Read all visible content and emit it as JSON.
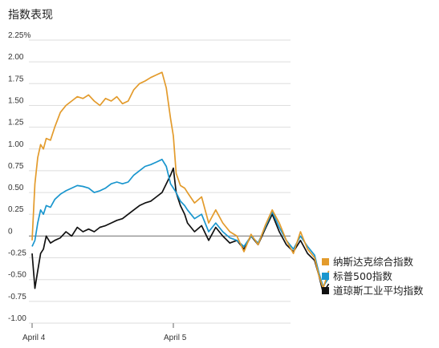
{
  "chart_data": {
    "type": "line",
    "title": "指数表现",
    "xlabel": "",
    "ylabel": "",
    "ylim": [
      -1.0,
      2.25
    ],
    "y_ticks": [
      {
        "value": 2.25,
        "label": "2.25%"
      },
      {
        "value": 2.0,
        "label": "2.00"
      },
      {
        "value": 1.75,
        "label": "1.75"
      },
      {
        "value": 1.5,
        "label": "1.50"
      },
      {
        "value": 1.25,
        "label": "1.25"
      },
      {
        "value": 1.0,
        "label": "1.00"
      },
      {
        "value": 0.75,
        "label": "0.75"
      },
      {
        "value": 0.5,
        "label": "0.50"
      },
      {
        "value": 0.25,
        "label": "0.25"
      },
      {
        "value": 0.0,
        "label": "0"
      },
      {
        "value": -0.25,
        "label": "-0.25"
      },
      {
        "value": -0.5,
        "label": "-0.50"
      },
      {
        "value": -0.75,
        "label": "-0.75"
      },
      {
        "value": -1.0,
        "label": "-1.00"
      }
    ],
    "x_ticks": [
      {
        "value": 0,
        "label": "April 4"
      },
      {
        "value": 1,
        "label": "April 5"
      }
    ],
    "xlim": [
      0,
      2.1
    ],
    "grid": "horizontal",
    "legend_position": "bottom-right",
    "series": [
      {
        "name": "纳斯达克综合指数",
        "color": "#E39B2C",
        "x": [
          0,
          0.02,
          0.04,
          0.06,
          0.08,
          0.1,
          0.13,
          0.16,
          0.2,
          0.24,
          0.28,
          0.32,
          0.36,
          0.4,
          0.44,
          0.48,
          0.52,
          0.56,
          0.6,
          0.64,
          0.68,
          0.72,
          0.76,
          0.8,
          0.84,
          0.88,
          0.92,
          0.95,
          0.98,
          1.0,
          1.02,
          1.05,
          1.08,
          1.1,
          1.15,
          1.2,
          1.25,
          1.3,
          1.35,
          1.4,
          1.45,
          1.5,
          1.55,
          1.6,
          1.65,
          1.7,
          1.75,
          1.8,
          1.85,
          1.9,
          1.95,
          2.0,
          2.03,
          2.06,
          2.1
        ],
        "y": [
          -0.05,
          0.6,
          0.9,
          1.05,
          1.0,
          1.12,
          1.1,
          1.25,
          1.42,
          1.5,
          1.55,
          1.6,
          1.58,
          1.62,
          1.55,
          1.5,
          1.58,
          1.55,
          1.6,
          1.52,
          1.55,
          1.68,
          1.75,
          1.78,
          1.82,
          1.85,
          1.88,
          1.7,
          1.35,
          1.15,
          0.72,
          0.58,
          0.55,
          0.5,
          0.38,
          0.45,
          0.15,
          0.3,
          0.15,
          0.05,
          0.0,
          -0.18,
          0.02,
          -0.1,
          0.12,
          0.3,
          0.15,
          -0.05,
          -0.2,
          0.05,
          -0.15,
          -0.25,
          -0.45,
          -0.6,
          -0.4
        ]
      },
      {
        "name": "标普500指数",
        "color": "#1A96CE",
        "x": [
          0,
          0.02,
          0.04,
          0.06,
          0.08,
          0.1,
          0.13,
          0.16,
          0.2,
          0.24,
          0.28,
          0.32,
          0.36,
          0.4,
          0.44,
          0.48,
          0.52,
          0.56,
          0.6,
          0.64,
          0.68,
          0.72,
          0.76,
          0.8,
          0.84,
          0.88,
          0.92,
          0.95,
          0.98,
          1.0,
          1.02,
          1.05,
          1.08,
          1.1,
          1.15,
          1.2,
          1.25,
          1.3,
          1.35,
          1.4,
          1.45,
          1.5,
          1.55,
          1.6,
          1.65,
          1.7,
          1.75,
          1.8,
          1.85,
          1.9,
          1.95,
          2.0,
          2.03,
          2.06,
          2.1
        ],
        "y": [
          -0.12,
          -0.05,
          0.15,
          0.3,
          0.25,
          0.35,
          0.33,
          0.42,
          0.48,
          0.52,
          0.55,
          0.58,
          0.57,
          0.55,
          0.5,
          0.52,
          0.55,
          0.6,
          0.62,
          0.6,
          0.62,
          0.7,
          0.75,
          0.8,
          0.82,
          0.85,
          0.88,
          0.8,
          0.6,
          0.55,
          0.5,
          0.4,
          0.35,
          0.3,
          0.2,
          0.25,
          0.05,
          0.15,
          0.05,
          -0.02,
          -0.05,
          -0.12,
          0.0,
          -0.08,
          0.1,
          0.28,
          0.1,
          -0.05,
          -0.15,
          0.0,
          -0.12,
          -0.22,
          -0.42,
          -0.58,
          -0.48
        ]
      },
      {
        "name": "道琼斯工业平均指数",
        "color": "#111111",
        "x": [
          0,
          0.02,
          0.04,
          0.06,
          0.08,
          0.1,
          0.13,
          0.16,
          0.2,
          0.24,
          0.28,
          0.32,
          0.36,
          0.4,
          0.44,
          0.48,
          0.52,
          0.56,
          0.6,
          0.64,
          0.68,
          0.72,
          0.76,
          0.8,
          0.84,
          0.88,
          0.92,
          0.95,
          0.98,
          1.0,
          1.02,
          1.05,
          1.08,
          1.1,
          1.15,
          1.2,
          1.25,
          1.3,
          1.35,
          1.4,
          1.45,
          1.5,
          1.55,
          1.6,
          1.65,
          1.7,
          1.75,
          1.8,
          1.85,
          1.9,
          1.95,
          2.0,
          2.03,
          2.06,
          2.1
        ],
        "y": [
          -0.2,
          -0.6,
          -0.4,
          -0.2,
          -0.15,
          0.0,
          -0.08,
          -0.05,
          -0.02,
          0.05,
          0.0,
          0.1,
          0.05,
          0.08,
          0.05,
          0.1,
          0.12,
          0.15,
          0.18,
          0.2,
          0.25,
          0.3,
          0.35,
          0.38,
          0.4,
          0.45,
          0.5,
          0.6,
          0.7,
          0.78,
          0.5,
          0.35,
          0.25,
          0.15,
          0.05,
          0.12,
          -0.05,
          0.1,
          0.0,
          -0.08,
          -0.05,
          -0.15,
          0.0,
          -0.1,
          0.08,
          0.25,
          0.05,
          -0.1,
          -0.18,
          -0.05,
          -0.2,
          -0.28,
          -0.45,
          -0.65,
          -0.55
        ]
      }
    ]
  }
}
